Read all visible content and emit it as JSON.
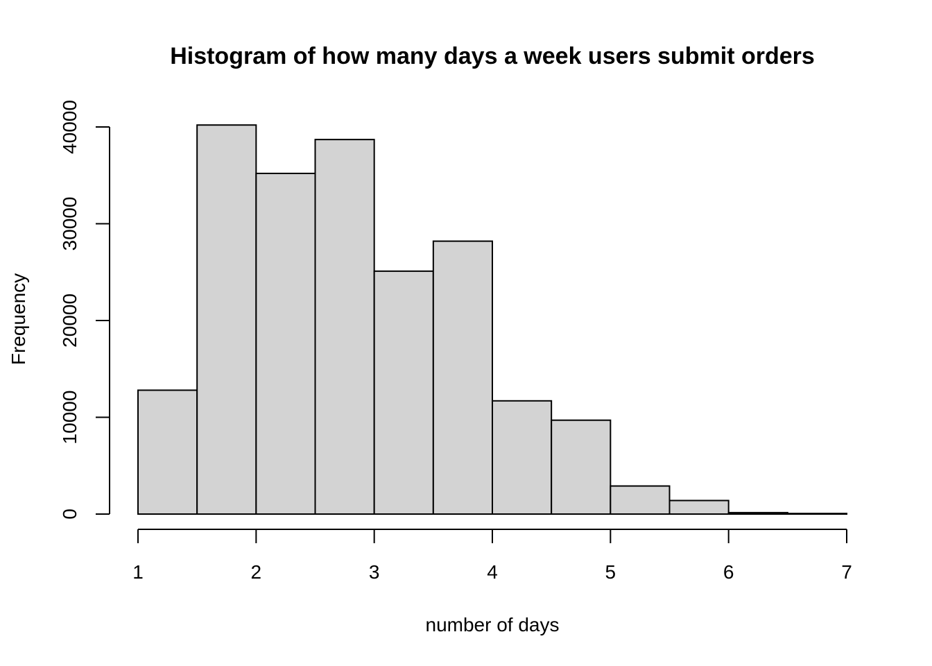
{
  "chart_data": {
    "type": "bar",
    "title": "Histogram of how many days a week users submit orders",
    "xlabel": "number of days",
    "ylabel": "Frequency",
    "bins": [
      {
        "start": 1.0,
        "end": 1.5,
        "count": 12800
      },
      {
        "start": 1.5,
        "end": 2.0,
        "count": 40200
      },
      {
        "start": 2.0,
        "end": 2.5,
        "count": 35200
      },
      {
        "start": 2.5,
        "end": 3.0,
        "count": 38700
      },
      {
        "start": 3.0,
        "end": 3.5,
        "count": 25100
      },
      {
        "start": 3.5,
        "end": 4.0,
        "count": 28200
      },
      {
        "start": 4.0,
        "end": 4.5,
        "count": 11700
      },
      {
        "start": 4.5,
        "end": 5.0,
        "count": 9700
      },
      {
        "start": 5.0,
        "end": 5.5,
        "count": 2900
      },
      {
        "start": 5.5,
        "end": 6.0,
        "count": 1400
      },
      {
        "start": 6.0,
        "end": 6.5,
        "count": 150
      },
      {
        "start": 6.5,
        "end": 7.0,
        "count": 60
      }
    ],
    "xlim": [
      1,
      7
    ],
    "ylim": [
      0,
      40000
    ],
    "x_ticks": [
      "1",
      "2",
      "3",
      "4",
      "5",
      "6",
      "7"
    ],
    "y_ticks": [
      "0",
      "10000",
      "20000",
      "30000",
      "40000"
    ],
    "bar_color": "#d3d3d3",
    "grid": false,
    "legend": "none"
  }
}
